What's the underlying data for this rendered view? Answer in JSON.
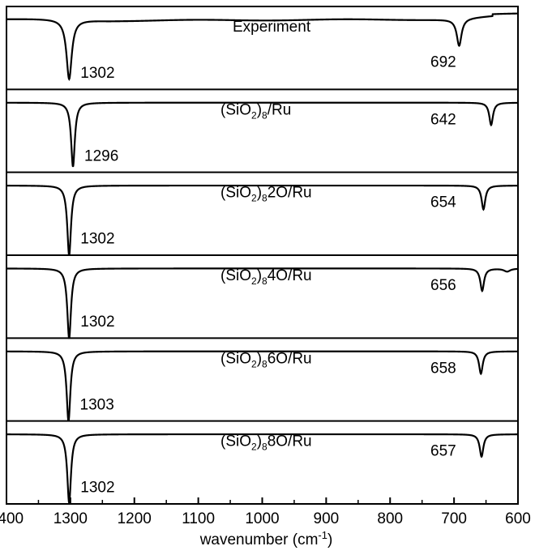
{
  "chart_data": {
    "type": "line",
    "title": "",
    "xlabel": {
      "base": "wavenumber (cm",
      "sup": "-1",
      "tail": ")"
    },
    "ylabel": "",
    "xlim": [
      1400,
      600
    ],
    "x_reversed": true,
    "xticks": [
      1400,
      1300,
      1200,
      1100,
      1000,
      900,
      800,
      700,
      600
    ],
    "yticks": [],
    "legend": "none",
    "grid": false,
    "stacked_panels": true,
    "series": [
      {
        "name": "Experiment",
        "name_parts": {
          "pre": "Experiment",
          "sub": "",
          "post": ""
        },
        "peaks": [
          {
            "x": 1302,
            "depth": 0.8,
            "width": 5,
            "label": "1302"
          },
          {
            "x": 692,
            "depth": 0.36,
            "width": 4.5,
            "label": "692"
          }
        ],
        "baseline_shape": "experimental"
      },
      {
        "name": "(SiO2)8/Ru",
        "name_parts": {
          "pre": "(SiO",
          "sub1": "2",
          "mid": ")",
          "sub": "8",
          "post": "/Ru"
        },
        "peaks": [
          {
            "x": 1296,
            "depth": 0.86,
            "width": 3.5,
            "label": "1296"
          },
          {
            "x": 642,
            "depth": 0.3,
            "width": 3.5,
            "label": "642"
          }
        ]
      },
      {
        "name": "(SiO2)82O/Ru",
        "name_parts": {
          "pre": "(SiO",
          "sub1": "2",
          "mid": ")",
          "sub": "8",
          "post": "2O/Ru"
        },
        "peaks": [
          {
            "x": 1302,
            "depth": 0.94,
            "width": 3.5,
            "label": "1302"
          },
          {
            "x": 654,
            "depth": 0.32,
            "width": 3.5,
            "label": "654"
          }
        ]
      },
      {
        "name": "(SiO2)84O/Ru",
        "name_parts": {
          "pre": "(SiO",
          "sub1": "2",
          "mid": ")",
          "sub": "8",
          "post": "4O/Ru"
        },
        "peaks": [
          {
            "x": 1302,
            "depth": 0.94,
            "width": 3.5,
            "label": "1302"
          },
          {
            "x": 656,
            "depth": 0.3,
            "width": 3.5,
            "label": "656"
          },
          {
            "x": 617,
            "depth": 0.04,
            "width": 6,
            "label": ""
          }
        ]
      },
      {
        "name": "(SiO2)86O/Ru",
        "name_parts": {
          "pre": "(SiO",
          "sub1": "2",
          "mid": ")",
          "sub": "8",
          "post": "6O/Ru"
        },
        "peaks": [
          {
            "x": 1303,
            "depth": 0.94,
            "width": 3.5,
            "label": "1303"
          },
          {
            "x": 658,
            "depth": 0.3,
            "width": 3.5,
            "label": "658"
          }
        ]
      },
      {
        "name": "(SiO2)88O/Ru",
        "name_parts": {
          "pre": "(SiO",
          "sub1": "2",
          "mid": ")",
          "sub": "8",
          "post": "8O/Ru"
        },
        "peaks": [
          {
            "x": 1302,
            "depth": 0.92,
            "width": 3.5,
            "label": "1302"
          },
          {
            "x": 657,
            "depth": 0.3,
            "width": 3.5,
            "label": "657"
          }
        ]
      }
    ]
  }
}
